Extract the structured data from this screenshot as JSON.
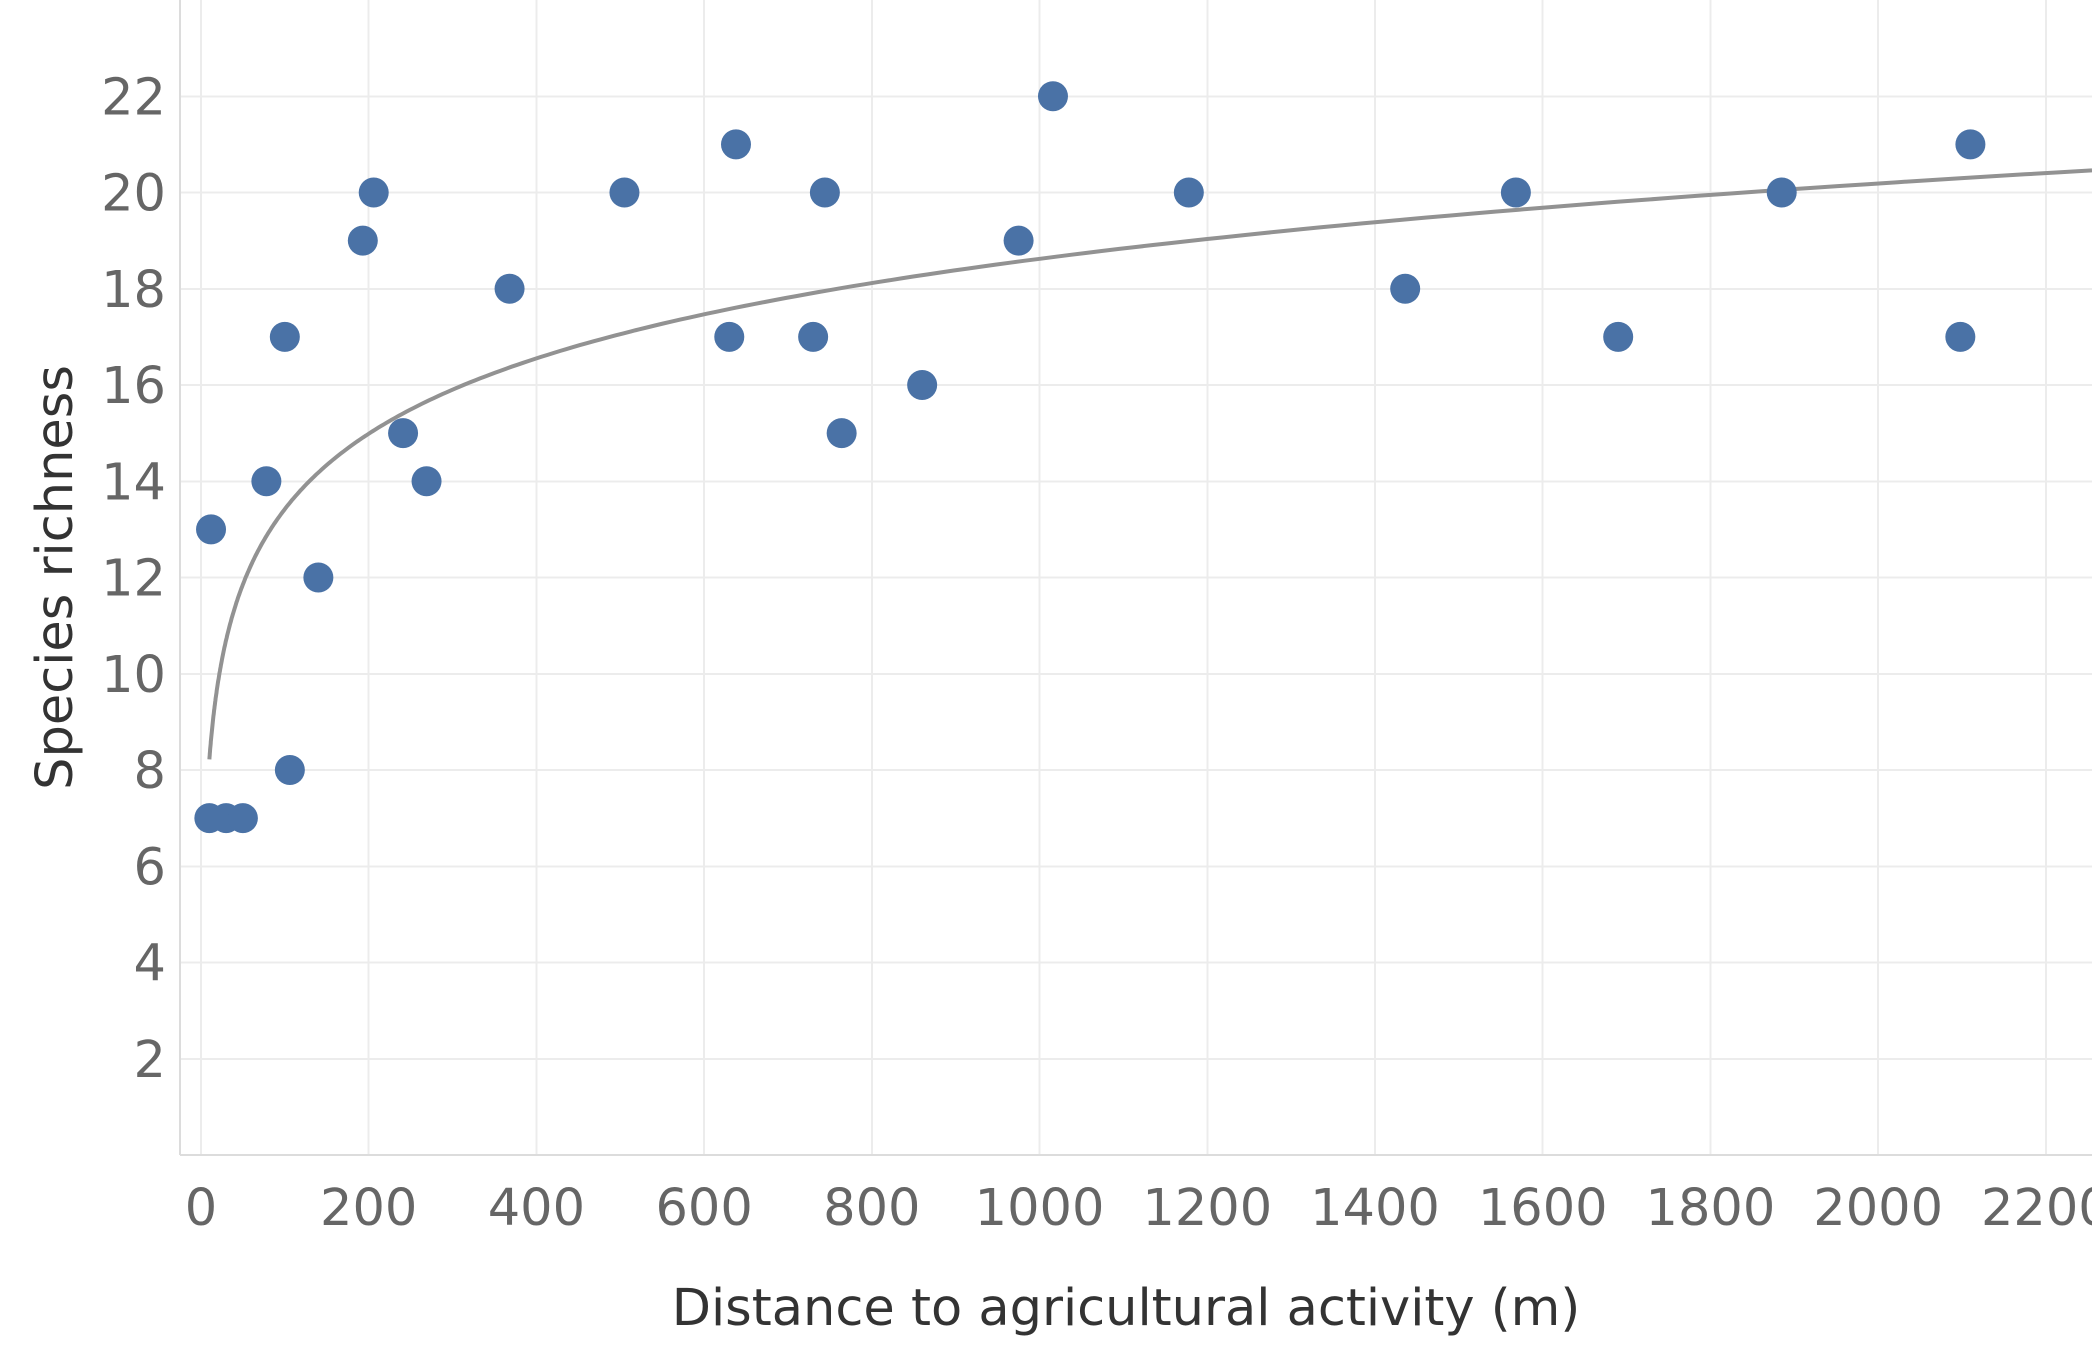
{
  "chart_data": {
    "type": "scatter",
    "title": "",
    "xlabel": "Distance to agricultural activity (m)",
    "ylabel": "Species richness",
    "xlim": [
      -25,
      2255
    ],
    "ylim": [
      0,
      24
    ],
    "x_ticks": [
      0,
      200,
      400,
      600,
      800,
      1000,
      1200,
      1400,
      1600,
      1800,
      2000,
      2200
    ],
    "y_ticks": [
      2,
      4,
      6,
      8,
      10,
      12,
      14,
      16,
      18,
      20,
      22
    ],
    "grid": true,
    "legend": "none",
    "point_color": "#4a72a6",
    "trend_color": "#929292",
    "trendline": {
      "type": "logarithmic",
      "x_range": [
        10,
        2255
      ]
    },
    "points": [
      {
        "x": 10,
        "y": 7
      },
      {
        "x": 30,
        "y": 7
      },
      {
        "x": 50,
        "y": 7
      },
      {
        "x": 12,
        "y": 13
      },
      {
        "x": 78,
        "y": 14
      },
      {
        "x": 100,
        "y": 17
      },
      {
        "x": 106,
        "y": 8
      },
      {
        "x": 140,
        "y": 12
      },
      {
        "x": 193,
        "y": 19
      },
      {
        "x": 206,
        "y": 20
      },
      {
        "x": 241,
        "y": 15
      },
      {
        "x": 269,
        "y": 14
      },
      {
        "x": 368,
        "y": 18
      },
      {
        "x": 505,
        "y": 20
      },
      {
        "x": 630,
        "y": 17
      },
      {
        "x": 638,
        "y": 21
      },
      {
        "x": 730,
        "y": 17
      },
      {
        "x": 744,
        "y": 20
      },
      {
        "x": 764,
        "y": 15
      },
      {
        "x": 860,
        "y": 16
      },
      {
        "x": 975,
        "y": 19
      },
      {
        "x": 1016,
        "y": 22
      },
      {
        "x": 1178,
        "y": 20
      },
      {
        "x": 1436,
        "y": 18
      },
      {
        "x": 1568,
        "y": 20
      },
      {
        "x": 1690,
        "y": 17
      },
      {
        "x": 1885,
        "y": 20
      },
      {
        "x": 2098,
        "y": 17
      },
      {
        "x": 2110,
        "y": 21
      }
    ]
  }
}
